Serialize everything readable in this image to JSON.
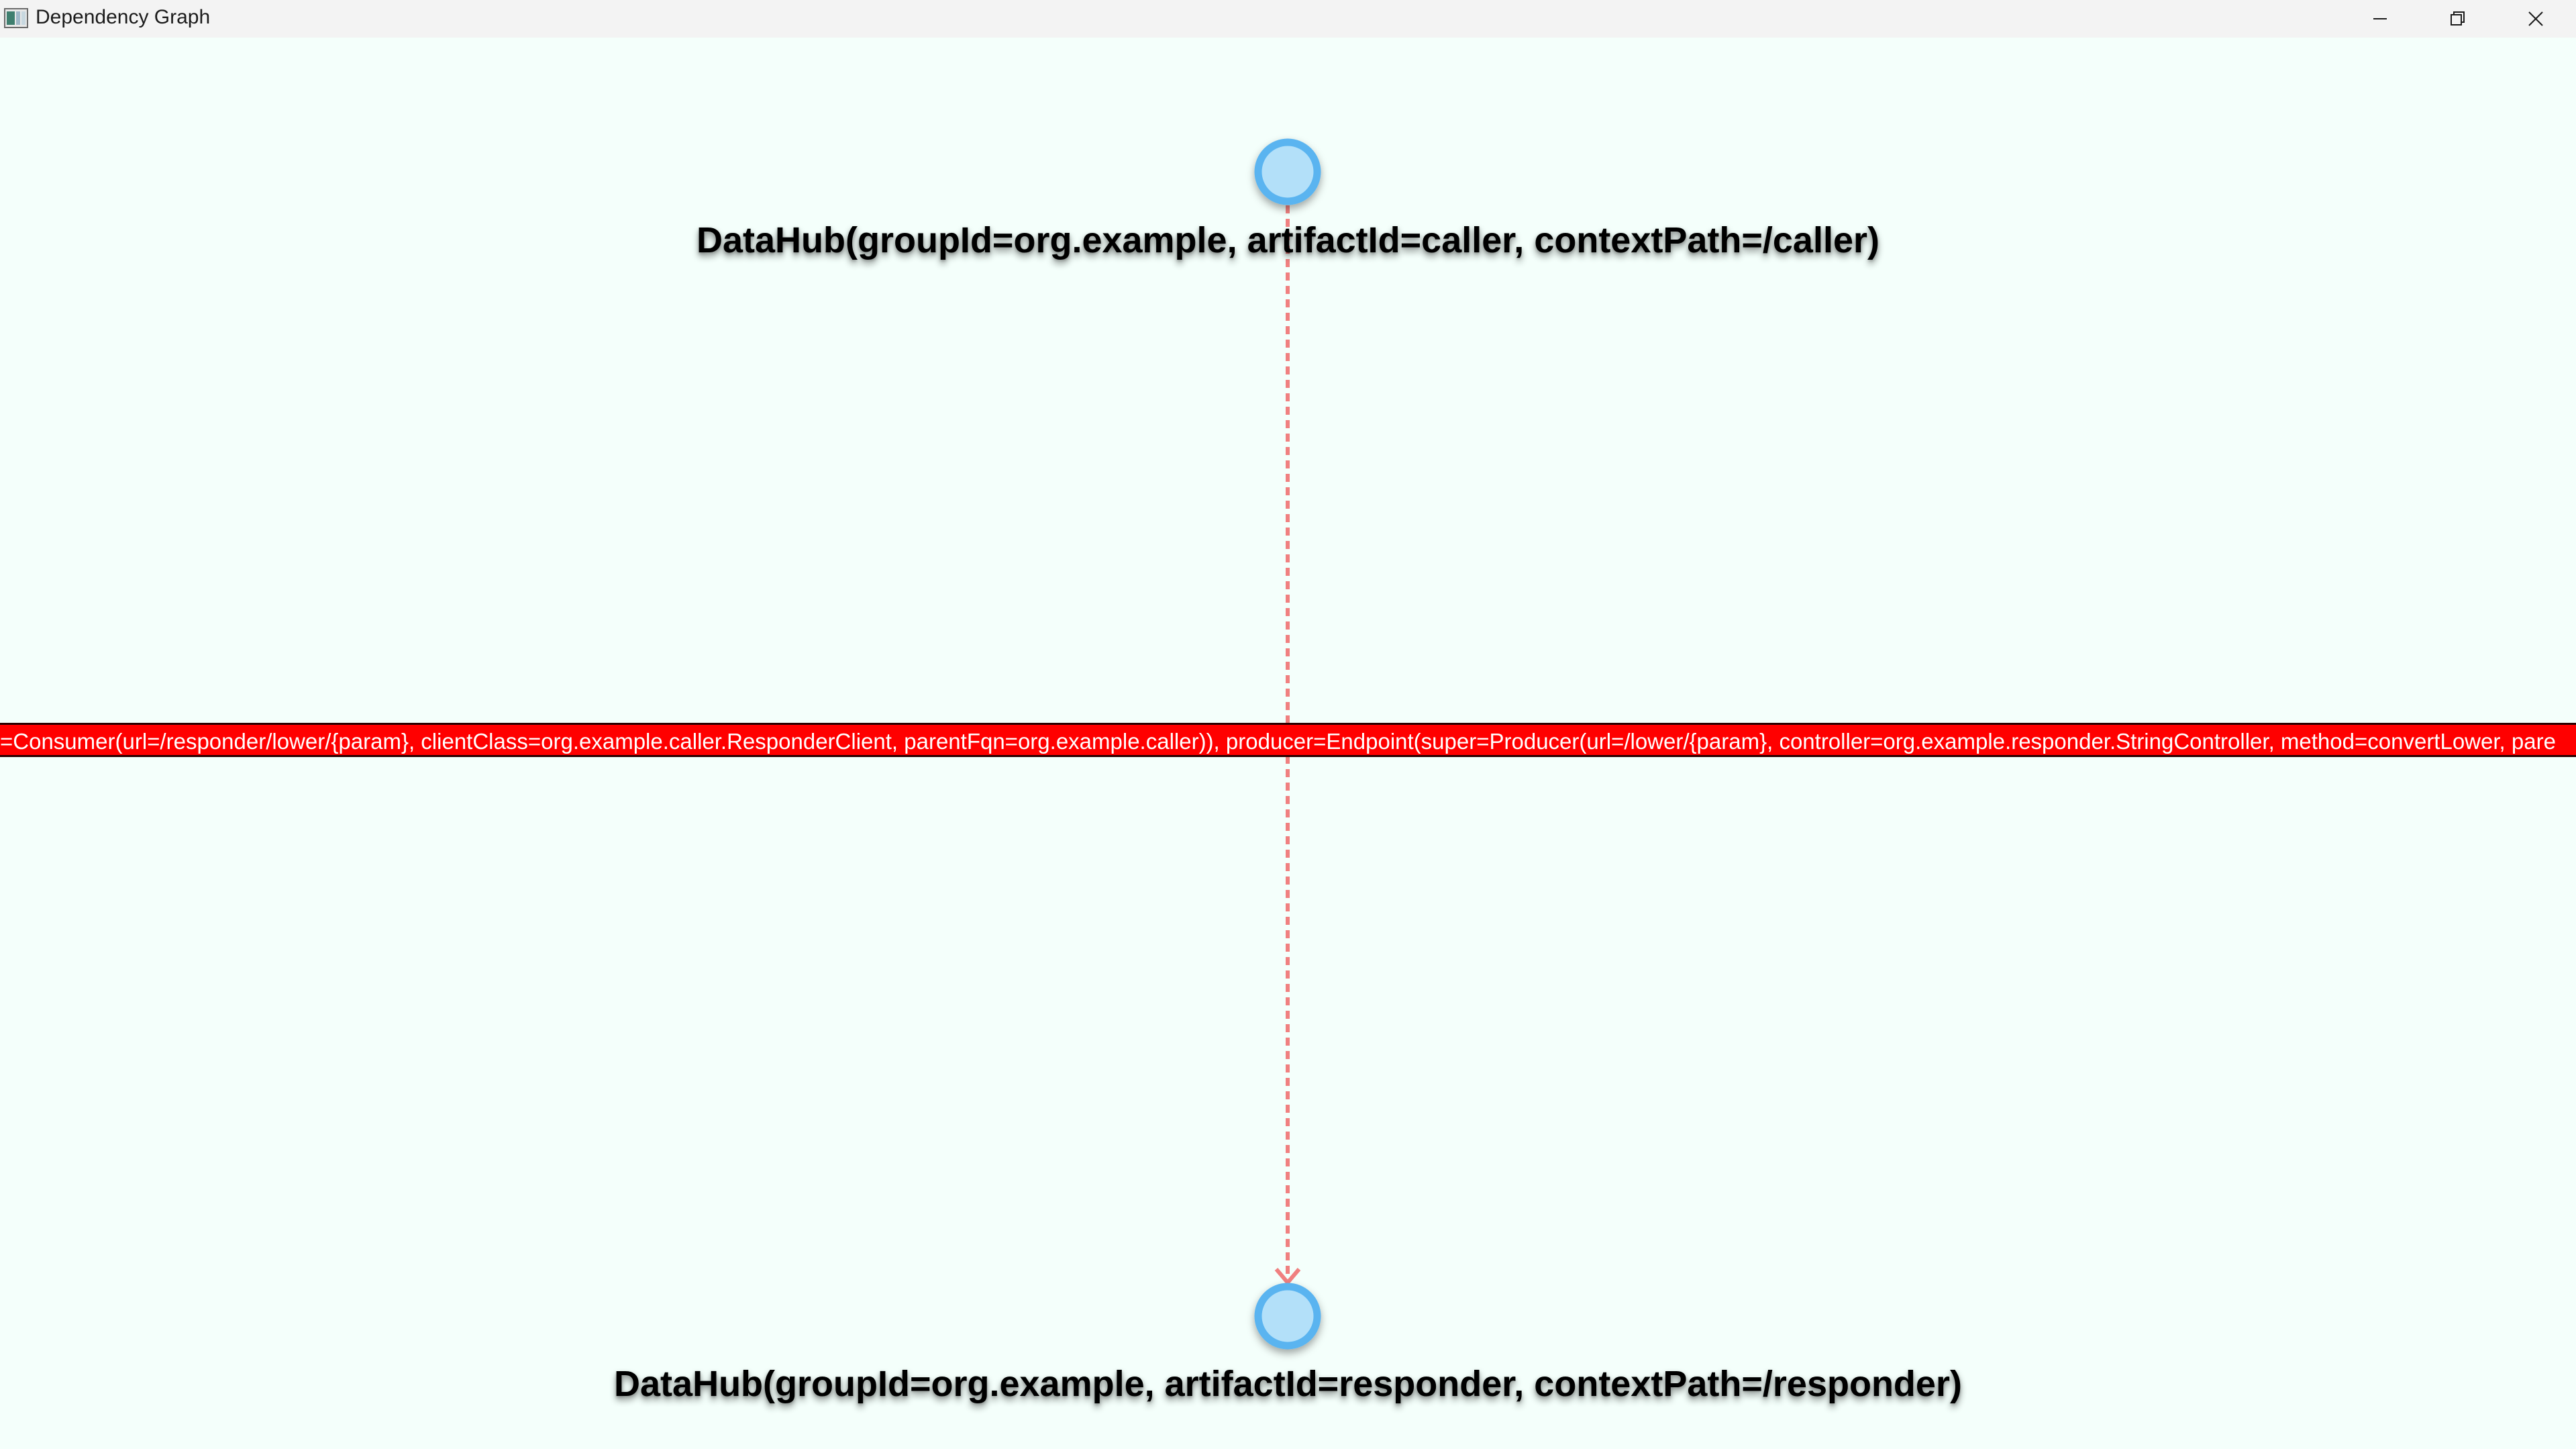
{
  "window": {
    "title": "Dependency Graph",
    "app_icon": "app-window-icon",
    "controls": {
      "minimize": "minimize-icon",
      "maximize": "restore-icon",
      "close": "close-icon"
    }
  },
  "graph": {
    "background": "#f4fffb",
    "nodes": [
      {
        "id": "caller",
        "label": "DataHub(groupId=org.example, artifactId=caller, contextPath=/caller)",
        "fill": "#b3e0f9",
        "stroke": "#5ab4f0"
      },
      {
        "id": "responder",
        "label": "DataHub(groupId=org.example, artifactId=responder, contextPath=/responder)",
        "fill": "#b3e0f9",
        "stroke": "#5ab4f0"
      }
    ],
    "edges": [
      {
        "from": "caller",
        "to": "responder",
        "style": "dashed",
        "color": "#f08080",
        "label": "=Consumer(url=/responder/lower/{param}, clientClass=org.example.caller.ResponderClient, parentFqn=org.example.caller)), producer=Endpoint(super=Producer(url=/lower/{param}, controller=org.example.responder.StringController, method=convertLower, pare",
        "label_background": "#ff0000",
        "label_color": "#ffffff"
      }
    ]
  }
}
